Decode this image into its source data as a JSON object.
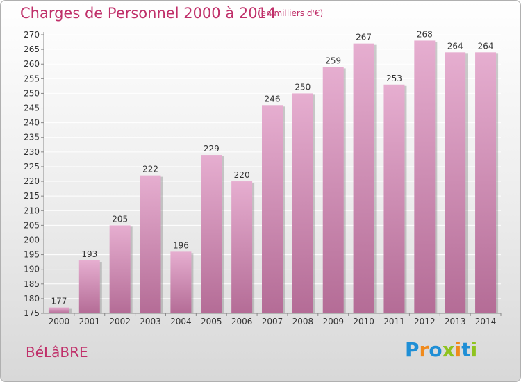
{
  "header": {
    "title": "Charges de Personnel 2000 à 2014",
    "unit": "(en milliers d'€)"
  },
  "footer": {
    "commune": "BéLâBRE",
    "logo": "Proxiti",
    "logo_letters": [
      {
        "char": "P",
        "color": "#1f8fd6"
      },
      {
        "char": "r",
        "color": "#f08a1c"
      },
      {
        "char": "o",
        "color": "#1f8fd6"
      },
      {
        "char": "x",
        "color": "#8fc31f"
      },
      {
        "char": "i",
        "color": "#f08a1c"
      },
      {
        "char": "t",
        "color": "#1f8fd6"
      },
      {
        "char": "i",
        "color": "#8fc31f"
      }
    ]
  },
  "colors": {
    "accent": "#c0306a",
    "bar_top": "#e6aed0",
    "bar_bottom": "#b46c96",
    "bar_shadow": "#8e8e8e"
  },
  "chart_data": {
    "type": "bar",
    "title": "Charges de Personnel 2000 à 2014",
    "ylabel": "",
    "xlabel": "",
    "categories": [
      "2000",
      "2001",
      "2002",
      "2003",
      "2004",
      "2005",
      "2006",
      "2007",
      "2008",
      "2009",
      "2010",
      "2011",
      "2012",
      "2013",
      "2014"
    ],
    "values": [
      177,
      193,
      205,
      222,
      196,
      229,
      220,
      246,
      250,
      259,
      267,
      253,
      268,
      264,
      264
    ],
    "ylim": [
      175,
      270
    ],
    "yticks": [
      175,
      180,
      185,
      190,
      195,
      200,
      205,
      210,
      215,
      220,
      225,
      230,
      235,
      240,
      245,
      250,
      255,
      260,
      265,
      270
    ],
    "grid": true,
    "legend": "none"
  }
}
